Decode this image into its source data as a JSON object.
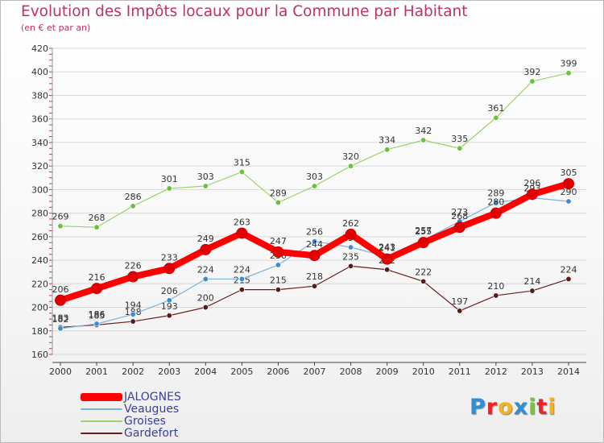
{
  "header": {
    "title": "Evolution des Impôts locaux pour la Commune par Habitant",
    "subtitle": "(en € et par an)"
  },
  "colors": {
    "title": "#c0306a",
    "grid": "#d8d8d8",
    "axis": "#444444",
    "legend_text": "#3a3fa0"
  },
  "logo": {
    "letters": [
      "P",
      "r",
      "o",
      "x",
      "i",
      "t",
      "i"
    ],
    "letter_colors": [
      "#2e8fd9",
      "#e8262a",
      "#f3b420",
      "#2e8fd9",
      "#7cc23c",
      "#e8262a",
      "#f3b420"
    ]
  },
  "chart_data": {
    "type": "line",
    "title": "Evolution des Impôts locaux pour la Commune par Habitant",
    "subtitle": "(en € et par an)",
    "xlabel": "",
    "ylabel": "",
    "x": [
      "2000",
      "2001",
      "2002",
      "2003",
      "2004",
      "2005",
      "2006",
      "2007",
      "2008",
      "2009",
      "2010",
      "2011",
      "2012",
      "2013",
      "2014"
    ],
    "ylim": [
      160,
      420
    ],
    "yticks": [
      160,
      180,
      200,
      220,
      240,
      260,
      280,
      300,
      320,
      340,
      360,
      380,
      400,
      420
    ],
    "grid": true,
    "legend_position": "bottom-left",
    "series": [
      {
        "name": "Gardefort",
        "color": "#6b1f1f",
        "marker": "#5a1a1a",
        "width": 1.2,
        "values": [
          183,
          185,
          188,
          193,
          200,
          215,
          215,
          218,
          235,
          232,
          222,
          197,
          210,
          214,
          224
        ]
      },
      {
        "name": "Groises",
        "color": "#9ad36a",
        "marker": "#6cc03a",
        "width": 1.2,
        "values": [
          269,
          268,
          286,
          301,
          303,
          315,
          289,
          303,
          320,
          334,
          342,
          335,
          361,
          392,
          399
        ]
      },
      {
        "name": "Veaugues",
        "color": "#7fb2d9",
        "marker": "#3d8ad0",
        "width": 1.2,
        "values": [
          182,
          186,
          194,
          206,
          224,
          224,
          236,
          256,
          251,
          243,
          257,
          273,
          289,
          293,
          290
        ]
      },
      {
        "name": "JALOGNES",
        "color": "#ff0000",
        "marker": "#e00000",
        "width": 8,
        "values": [
          206,
          216,
          226,
          233,
          249,
          263,
          247,
          244,
          262,
          241,
          255,
          268,
          280,
          296,
          305
        ]
      }
    ],
    "legend_order": [
      "JALOGNES",
      "Veaugues",
      "Groises",
      "Gardefort"
    ]
  }
}
